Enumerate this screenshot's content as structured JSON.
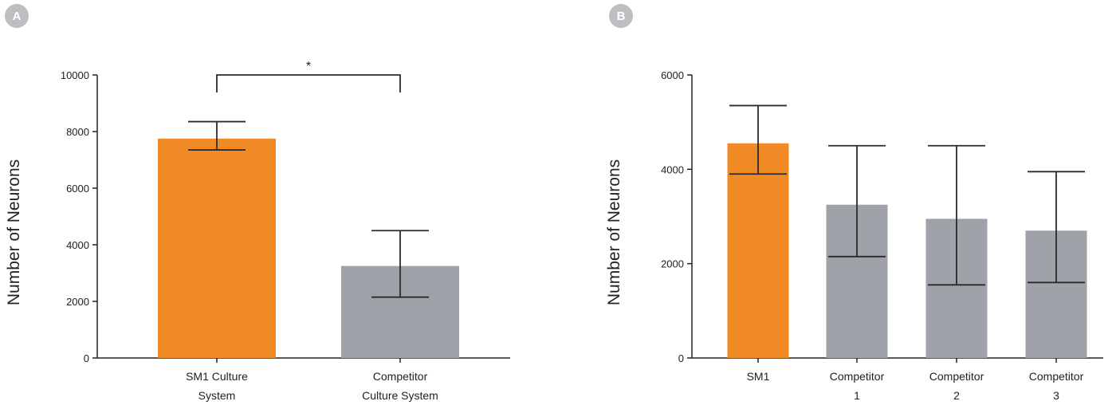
{
  "colors": {
    "accent": "#F08A24",
    "competitor": "#9FA2A8",
    "badge": "#BDBEC1"
  },
  "chart_data": [
    {
      "panel": "A",
      "type": "bar",
      "ylabel": "Number of Neurons",
      "ylim": [
        0,
        10000
      ],
      "yticks": [
        0,
        2000,
        4000,
        6000,
        8000,
        10000
      ],
      "categories": [
        {
          "line1": "SM1 Culture",
          "line2": "System"
        },
        {
          "line1": "Competitor",
          "line2": "Culture System"
        }
      ],
      "values": [
        7750,
        3250
      ],
      "err_low": [
        7350,
        2150
      ],
      "err_high": [
        8350,
        4500
      ],
      "bar_colors": [
        "#F08A24",
        "#9FA2A8"
      ],
      "significance": {
        "label": "*",
        "between": [
          0,
          1
        ]
      }
    },
    {
      "panel": "B",
      "type": "bar",
      "ylabel": "Number of Neurons",
      "ylim": [
        0,
        6000
      ],
      "yticks": [
        0,
        2000,
        4000,
        6000
      ],
      "categories": [
        {
          "line1": "SM1",
          "line2": ""
        },
        {
          "line1": "Competitor",
          "line2": "1"
        },
        {
          "line1": "Competitor",
          "line2": "2"
        },
        {
          "line1": "Competitor",
          "line2": "3"
        }
      ],
      "values": [
        4550,
        3250,
        2950,
        2700
      ],
      "err_low": [
        3900,
        2150,
        1550,
        1600
      ],
      "err_high": [
        5350,
        4500,
        4500,
        3950
      ],
      "bar_colors": [
        "#F08A24",
        "#9FA2A8",
        "#9FA2A8",
        "#9FA2A8"
      ]
    }
  ]
}
